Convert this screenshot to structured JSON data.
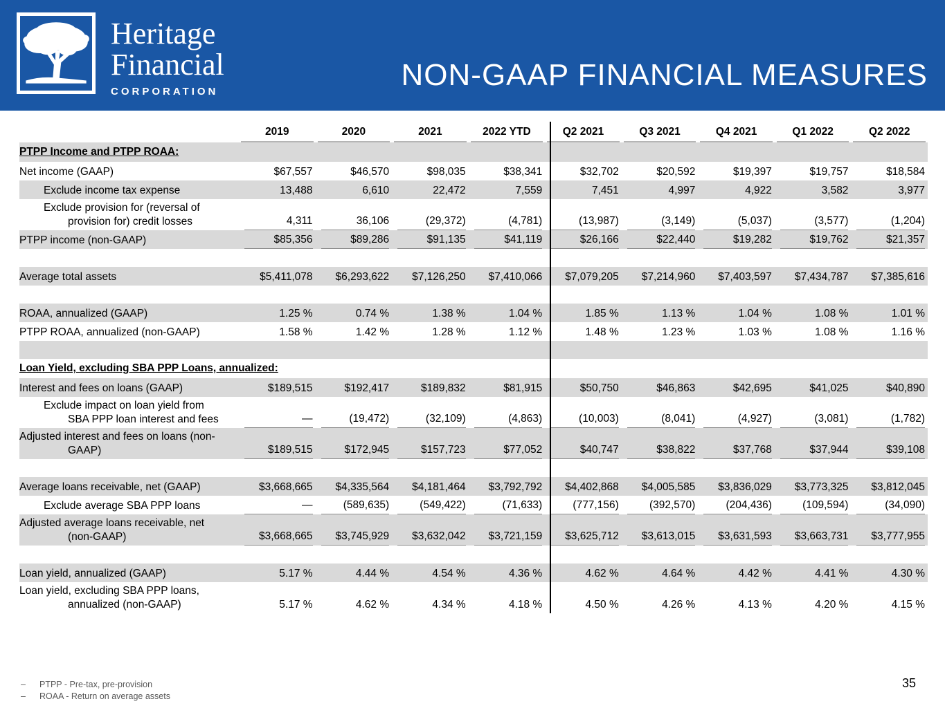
{
  "header": {
    "logo": {
      "line1": "Heritage",
      "line2": "Financial",
      "sub": "CORPORATION"
    },
    "title": "NON-GAAP FINANCIAL MEASURES"
  },
  "colors": {
    "banner_blue": "#1a57a5",
    "row_shade_gray": "#d9d9d9",
    "value_underline_gray": "#8a8a8a",
    "header_underline_gray": "#b5b5b5",
    "footnote_gray": "#595959"
  },
  "table": {
    "columns": [
      "2019",
      "2020",
      "2021",
      "2022 YTD",
      "Q2 2021",
      "Q3 2021",
      "Q4 2021",
      "Q1 2022",
      "Q2 2022"
    ],
    "rows": [
      {
        "type": "section",
        "shade": true,
        "label": "PTPP Income and PTPP ROAA:"
      },
      {
        "type": "data",
        "shade": false,
        "lines": [
          "Net income (GAAP)"
        ],
        "values": [
          "$67,557",
          "$46,570",
          "$98,035",
          "$38,341",
          "$32,702",
          "$20,592",
          "$19,397",
          "$19,757",
          "$18,584"
        ]
      },
      {
        "type": "data",
        "shade": true,
        "indent": true,
        "lines": [
          "Exclude income tax expense"
        ],
        "values": [
          "13,488",
          "6,610",
          "22,472",
          "7,559",
          "7,451",
          "4,997",
          "4,922",
          "3,582",
          "3,977"
        ]
      },
      {
        "type": "data",
        "shade": false,
        "indent": true,
        "underline": true,
        "lines": [
          "Exclude provision for (reversal of",
          "provision for) credit losses"
        ],
        "values": [
          "4,311",
          "36,106",
          "(29,372)",
          "(4,781)",
          "(13,987)",
          "(3,149)",
          "(5,037)",
          "(3,577)",
          "(1,204)"
        ]
      },
      {
        "type": "data",
        "shade": true,
        "underline": true,
        "lines": [
          "PTPP income (non-GAAP)"
        ],
        "values": [
          "$85,356",
          "$89,286",
          "$91,135",
          "$41,119",
          "$26,166",
          "$22,440",
          "$19,282",
          "$19,762",
          "$21,357"
        ]
      },
      {
        "type": "blank",
        "shade": false
      },
      {
        "type": "data",
        "shade": true,
        "lines": [
          "Average total assets"
        ],
        "values": [
          "$5,411,078",
          "$6,293,622",
          "$7,126,250",
          "$7,410,066",
          "$7,079,205",
          "$7,214,960",
          "$7,403,597",
          "$7,434,787",
          "$7,385,616"
        ]
      },
      {
        "type": "blank",
        "shade": false
      },
      {
        "type": "data",
        "shade": true,
        "lines": [
          "ROAA, annualized (GAAP)"
        ],
        "values": [
          "1.25 %",
          "0.74 %",
          "1.38 %",
          "1.04 %",
          "1.85 %",
          "1.13 %",
          "1.04 %",
          "1.08 %",
          "1.01 %"
        ]
      },
      {
        "type": "data",
        "shade": false,
        "lines": [
          "PTPP ROAA, annualized (non-GAAP)"
        ],
        "values": [
          "1.58 %",
          "1.42 %",
          "1.28 %",
          "1.12 %",
          "1.48 %",
          "1.23 %",
          "1.03 %",
          "1.08 %",
          "1.16 %"
        ]
      },
      {
        "type": "blank",
        "shade": true
      },
      {
        "type": "section",
        "shade": false,
        "label": "Loan Yield, excluding SBA PPP Loans, annualized:"
      },
      {
        "type": "data",
        "shade": true,
        "lines": [
          "Interest and fees on loans (GAAP)"
        ],
        "values": [
          "$189,515",
          "$192,417",
          "$189,832",
          "$81,915",
          "$50,750",
          "$46,863",
          "$42,695",
          "$41,025",
          "$40,890"
        ]
      },
      {
        "type": "data",
        "shade": false,
        "indent": true,
        "underline": true,
        "lines": [
          "Exclude impact on loan yield from",
          "SBA PPP loan interest and fees"
        ],
        "values": [
          "—",
          "(19,472)",
          "(32,109)",
          "(4,863)",
          "(10,003)",
          "(8,041)",
          "(4,927)",
          "(3,081)",
          "(1,782)"
        ]
      },
      {
        "type": "data",
        "shade": true,
        "underline": true,
        "lines": [
          "Adjusted interest and fees on loans (non-",
          "GAAP)"
        ],
        "values": [
          "$189,515",
          "$172,945",
          "$157,723",
          "$77,052",
          "$40,747",
          "$38,822",
          "$37,768",
          "$37,944",
          "$39,108"
        ]
      },
      {
        "type": "blank",
        "shade": false
      },
      {
        "type": "data",
        "shade": true,
        "lines": [
          "Average loans receivable, net (GAAP)"
        ],
        "values": [
          "$3,668,665",
          "$4,335,564",
          "$4,181,464",
          "$3,792,792",
          "$4,402,868",
          "$4,005,585",
          "$3,836,029",
          "$3,773,325",
          "$3,812,045"
        ]
      },
      {
        "type": "data",
        "shade": false,
        "indent": true,
        "underline": true,
        "lines": [
          "Exclude average SBA PPP loans"
        ],
        "values": [
          "—",
          "(589,635)",
          "(549,422)",
          "(71,633)",
          "(777,156)",
          "(392,570)",
          "(204,436)",
          "(109,594)",
          "(34,090)"
        ]
      },
      {
        "type": "data",
        "shade": true,
        "underline": true,
        "lines": [
          "Adjusted average loans receivable, net",
          "(non-GAAP)"
        ],
        "values": [
          "$3,668,665",
          "$3,745,929",
          "$3,632,042",
          "$3,721,159",
          "$3,625,712",
          "$3,613,015",
          "$3,631,593",
          "$3,663,731",
          "$3,777,955"
        ]
      },
      {
        "type": "blank",
        "shade": false
      },
      {
        "type": "data",
        "shade": true,
        "lines": [
          "Loan yield, annualized (GAAP)"
        ],
        "values": [
          "5.17 %",
          "4.44 %",
          "4.54 %",
          "4.36 %",
          "4.62 %",
          "4.64 %",
          "4.42 %",
          "4.41 %",
          "4.30 %"
        ]
      },
      {
        "type": "data",
        "shade": false,
        "lines": [
          "Loan yield, excluding SBA PPP loans,",
          "annualized (non-GAAP)"
        ],
        "values": [
          "5.17 %",
          "4.62 %",
          "4.34 %",
          "4.18 %",
          "4.50 %",
          "4.26 %",
          "4.13 %",
          "4.20 %",
          "4.15 %"
        ]
      }
    ]
  },
  "footnotes": [
    {
      "bullet": "–",
      "text": "PTPP - Pre-tax, pre-provision"
    },
    {
      "bullet": "–",
      "text": "ROAA - Return on average assets"
    }
  ],
  "page_number": "35"
}
